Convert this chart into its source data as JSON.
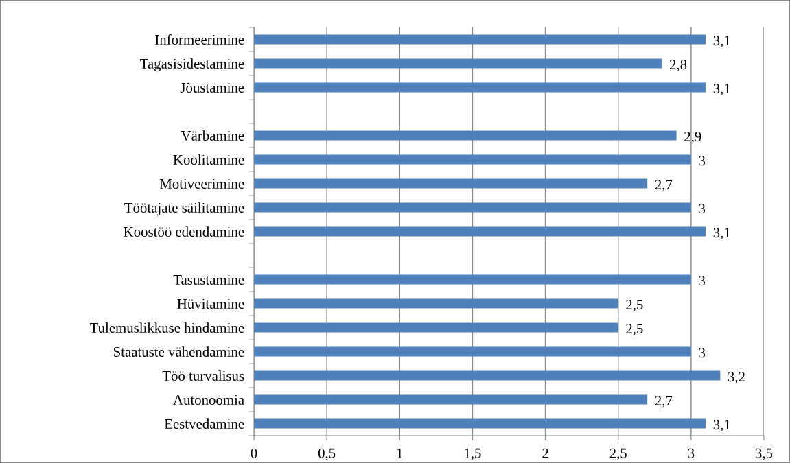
{
  "chart_data": {
    "type": "bar",
    "orientation": "horizontal",
    "categories": [
      "Informeerimine",
      "Tagasisidestamine",
      "Jõustamine",
      null,
      "Värbamine",
      "Koolitamine",
      "Motiveerimine",
      "Töötajate säilitamine",
      "Koostöö edendamine",
      null,
      "Tasustamine",
      "Hüvitamine",
      "Tulemuslikkuse hindamine",
      "Staatuste vähendamine",
      "Töö turvalisus",
      "Autonoomia",
      "Eestvedamine"
    ],
    "values": [
      3.1,
      2.8,
      3.1,
      null,
      2.9,
      3,
      2.7,
      3,
      3.1,
      null,
      3,
      2.5,
      2.5,
      3,
      3.2,
      2.7,
      3.1
    ],
    "value_labels": [
      "3,1",
      "2,8",
      "3,1",
      null,
      "2,9",
      "3",
      "2,7",
      "3",
      "3,1",
      null,
      "3",
      "2,5",
      "2,5",
      "3",
      "3,2",
      "2,7",
      "3,1"
    ],
    "color": "#4f81bd",
    "xlim": [
      0,
      3.5
    ],
    "xticks": [
      0,
      {
        "value": 0.5,
        "label": "0,5"
      },
      1,
      {
        "value": 1.5,
        "label": "1,5"
      },
      2,
      {
        "value": 2.5,
        "label": "2,5"
      },
      3,
      {
        "value": 3.5,
        "label": "3,5"
      }
    ],
    "grid": "x",
    "legend": false
  }
}
